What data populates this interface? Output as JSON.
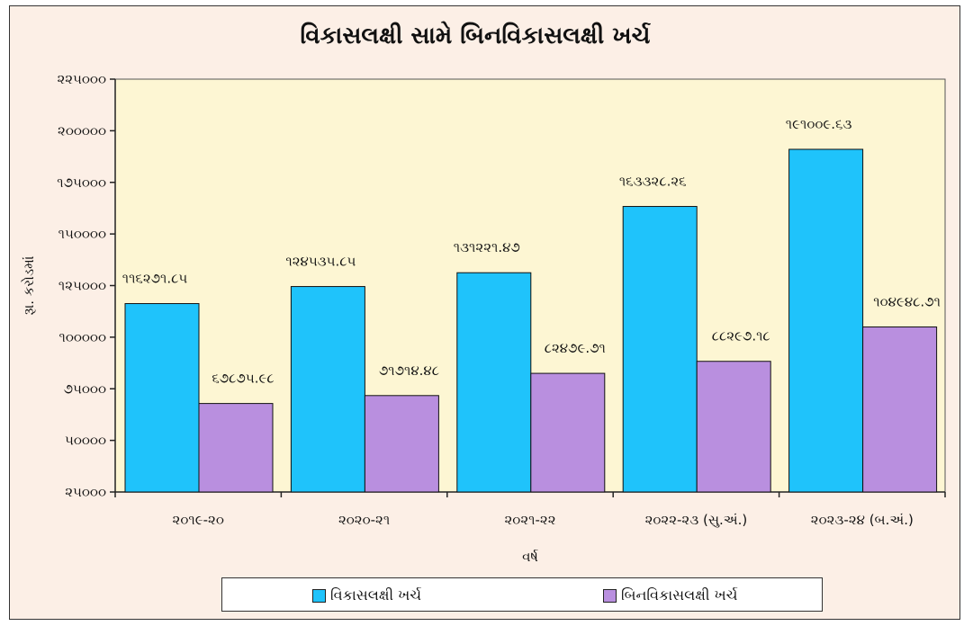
{
  "colors": {
    "plot_background": "#fdf6d3",
    "developmental": "#1fc3fb",
    "non_developmental": "#b98fdf"
  },
  "chart_data": {
    "type": "bar",
    "title": "વિકાસલક્ષી સામે બિનવિકાસલક્ષી ખર્ચ",
    "xlabel": "વર્ષ",
    "ylabel": "રૂા. કરોડમાં",
    "categories": [
      "૨૦૧૯-૨૦",
      "૨૦૨૦-૨૧",
      "૨૦૨૧-૨૨",
      "૨૦૨૨-૨૩ (સુ.અં.)",
      "૨૦૨૩-૨૪ (બ.અં.)"
    ],
    "ylim": [
      25000,
      225000
    ],
    "yticks": [
      225000,
      200000,
      175000,
      150000,
      125000,
      100000,
      75000,
      50000,
      25000
    ],
    "ytick_labels": [
      "૨૨૫૦૦૦",
      "૨૦૦૦૦૦",
      "૧૭૫૦૦૦",
      "૧૫૦૦૦૦",
      "૧૨૫૦૦૦",
      "૧૦૦૦૦૦",
      "૭૫૦૦૦",
      "૫૦૦૦૦",
      "૨૫૦૦૦"
    ],
    "series": [
      {
        "name": "વિકાસલક્ષી ખર્ચ",
        "values": [
          116271.85,
          124535.85,
          131221.47,
          163328.26,
          191009.63
        ],
        "labels": [
          "૧૧૬૨૭૧.૮૫",
          "૧૨૪૫૩૫.૮૫",
          "૧૩૧૨૨૧.૪૭",
          "૧૬૩૩૨૮.૨૬",
          "૧૯૧૦૦૯.૬૩"
        ]
      },
      {
        "name": "બિનવિકાસલક્ષી ખર્ચ",
        "values": [
          67875.98,
          71714.48,
          82479.71,
          88297.18,
          104948.71
        ],
        "labels": [
          "૬૭૮૭૫.૯૮",
          "૭૧૭૧૪.૪૮",
          "૮૨૪૭૯.૭૧",
          "૮૮૨૯૭.૧૮",
          "૧૦૪૯૪૮.૭૧"
        ]
      }
    ],
    "legend_position": "bottom",
    "grid": false
  }
}
